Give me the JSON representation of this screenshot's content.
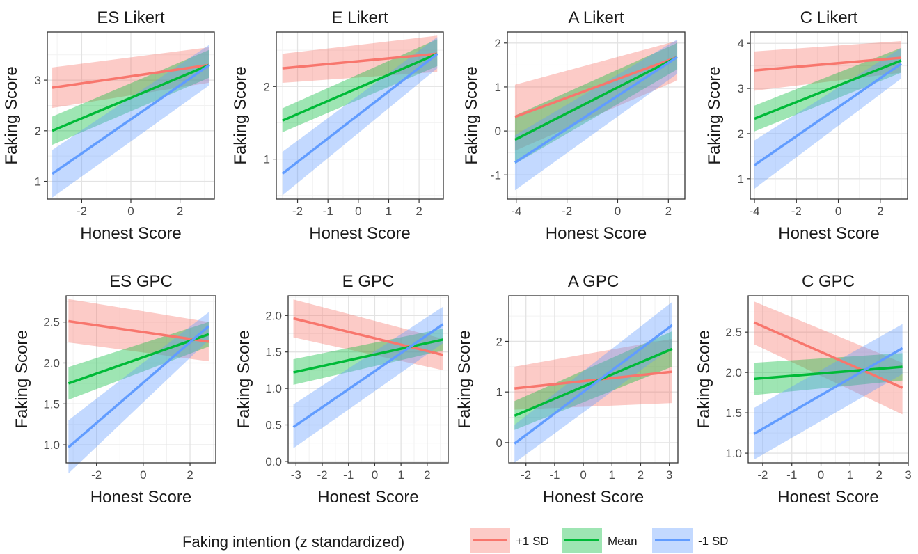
{
  "legend": {
    "title": "Faking intention (z standardized)",
    "position": "bottom",
    "entries": [
      {
        "label": "+1 SD",
        "color": "#F8766D"
      },
      {
        "label": "Mean",
        "color": "#00BA38"
      },
      {
        "label": "-1 SD",
        "color": "#619CFF"
      }
    ]
  },
  "chart_data": [
    {
      "type": "line",
      "title": "ES Likert",
      "xlabel": "Honest Score",
      "ylabel": "Faking Score",
      "xlim": [
        -3.4,
        3.4
      ],
      "ylim": [
        0.65,
        3.95
      ],
      "xticks": [
        -2,
        0,
        2
      ],
      "yticks": [
        1,
        2,
        3
      ],
      "grid": true,
      "series": [
        {
          "name": "+1 SD",
          "x": [
            -3.2,
            3.2
          ],
          "y": [
            2.85,
            3.3
          ],
          "lower": [
            2.45,
            2.95
          ],
          "upper": [
            3.25,
            3.65
          ]
        },
        {
          "name": "Mean",
          "x": [
            -3.2,
            3.2
          ],
          "y": [
            2.0,
            3.3
          ],
          "lower": [
            1.72,
            3.05
          ],
          "upper": [
            2.28,
            3.6
          ]
        },
        {
          "name": "-1 SD",
          "x": [
            -3.2,
            3.2
          ],
          "y": [
            1.15,
            3.3
          ],
          "lower": [
            0.68,
            2.9
          ],
          "upper": [
            1.62,
            3.7
          ]
        }
      ]
    },
    {
      "type": "line",
      "title": "E Likert",
      "xlabel": "Honest Score",
      "ylabel": "Faking Score",
      "xlim": [
        -2.7,
        2.8
      ],
      "ylim": [
        0.45,
        2.75
      ],
      "xticks": [
        -2,
        -1,
        0,
        1,
        2
      ],
      "yticks": [
        1,
        2
      ],
      "grid": true,
      "series": [
        {
          "name": "+1 SD",
          "x": [
            -2.5,
            2.6
          ],
          "y": [
            2.25,
            2.45
          ],
          "lower": [
            2.05,
            2.2
          ],
          "upper": [
            2.45,
            2.7
          ]
        },
        {
          "name": "Mean",
          "x": [
            -2.5,
            2.6
          ],
          "y": [
            1.53,
            2.45
          ],
          "lower": [
            1.37,
            2.28
          ],
          "upper": [
            1.7,
            2.65
          ]
        },
        {
          "name": "-1 SD",
          "x": [
            -2.5,
            2.6
          ],
          "y": [
            0.8,
            2.45
          ],
          "lower": [
            0.5,
            2.25
          ],
          "upper": [
            1.1,
            2.68
          ]
        }
      ]
    },
    {
      "type": "line",
      "title": "A Likert",
      "xlabel": "Honest Score",
      "ylabel": "Faking Score",
      "xlim": [
        -4.35,
        2.65
      ],
      "ylim": [
        -1.55,
        2.25
      ],
      "xticks": [
        -4,
        -2,
        0,
        2
      ],
      "yticks": [
        -1,
        0,
        1,
        2
      ],
      "grid": true,
      "series": [
        {
          "name": "+1 SD",
          "x": [
            -4.05,
            2.35
          ],
          "y": [
            0.32,
            1.68
          ],
          "lower": [
            -0.45,
            1.15
          ],
          "upper": [
            1.05,
            2.05
          ]
        },
        {
          "name": "Mean",
          "x": [
            -4.05,
            2.35
          ],
          "y": [
            -0.2,
            1.68
          ],
          "lower": [
            -0.75,
            1.4
          ],
          "upper": [
            0.35,
            2.0
          ]
        },
        {
          "name": "-1 SD",
          "x": [
            -4.05,
            2.35
          ],
          "y": [
            -0.72,
            1.68
          ],
          "lower": [
            -1.35,
            1.3
          ],
          "upper": [
            -0.1,
            2.08
          ]
        }
      ]
    },
    {
      "type": "line",
      "title": "C Likert",
      "xlabel": "Honest Score",
      "ylabel": "Faking Score",
      "xlim": [
        -4.2,
        3.3
      ],
      "ylim": [
        0.55,
        4.25
      ],
      "xticks": [
        -4,
        -2,
        0,
        2
      ],
      "yticks": [
        1,
        2,
        3,
        4
      ],
      "grid": true,
      "series": [
        {
          "name": "+1 SD",
          "x": [
            -4.0,
            3.0
          ],
          "y": [
            3.4,
            3.68
          ],
          "lower": [
            2.95,
            3.35
          ],
          "upper": [
            3.82,
            4.05
          ]
        },
        {
          "name": "Mean",
          "x": [
            -4.0,
            3.0
          ],
          "y": [
            2.33,
            3.62
          ],
          "lower": [
            2.05,
            3.35
          ],
          "upper": [
            2.62,
            3.9
          ]
        },
        {
          "name": "-1 SD",
          "x": [
            -4.0,
            3.0
          ],
          "y": [
            1.3,
            3.55
          ],
          "lower": [
            0.78,
            3.22
          ],
          "upper": [
            1.85,
            3.9
          ]
        }
      ]
    },
    {
      "type": "line",
      "title": "ES GPC",
      "xlabel": "Honest Score",
      "ylabel": "Faking Score",
      "xlim": [
        -3.3,
        3.1
      ],
      "ylim": [
        0.78,
        2.82
      ],
      "xticks": [
        -2,
        0,
        2
      ],
      "yticks": [
        1.0,
        1.5,
        2.0,
        2.5
      ],
      "ytick_labels": [
        "1.0",
        "1.5",
        "2.0",
        "2.5"
      ],
      "grid": true,
      "series": [
        {
          "name": "+1 SD",
          "x": [
            -3.2,
            2.8
          ],
          "y": [
            2.51,
            2.26
          ],
          "lower": [
            2.25,
            2.02
          ],
          "upper": [
            2.78,
            2.5
          ]
        },
        {
          "name": "Mean",
          "x": [
            -3.2,
            2.8
          ],
          "y": [
            1.75,
            2.35
          ],
          "lower": [
            1.55,
            2.2
          ],
          "upper": [
            1.95,
            2.5
          ]
        },
        {
          "name": "-1 SD",
          "x": [
            -3.2,
            2.8
          ],
          "y": [
            0.97,
            2.45
          ],
          "lower": [
            0.65,
            2.28
          ],
          "upper": [
            1.3,
            2.62
          ]
        }
      ]
    },
    {
      "type": "line",
      "title": "E GPC",
      "xlabel": "Honest Score",
      "ylabel": "Faking Score",
      "xlim": [
        -3.3,
        2.8
      ],
      "ylim": [
        -0.02,
        2.27
      ],
      "xticks": [
        -3,
        -2,
        -1,
        0,
        1,
        2
      ],
      "yticks": [
        0.0,
        0.5,
        1.0,
        1.5,
        2.0
      ],
      "ytick_labels": [
        "0.0",
        "0.5",
        "1.0",
        "1.5",
        "2.0"
      ],
      "grid": true,
      "series": [
        {
          "name": "+1 SD",
          "x": [
            -3.1,
            2.6
          ],
          "y": [
            1.96,
            1.46
          ],
          "lower": [
            1.7,
            1.25
          ],
          "upper": [
            2.22,
            1.68
          ]
        },
        {
          "name": "Mean",
          "x": [
            -3.1,
            2.6
          ],
          "y": [
            1.22,
            1.67
          ],
          "lower": [
            1.05,
            1.52
          ],
          "upper": [
            1.4,
            1.82
          ]
        },
        {
          "name": "-1 SD",
          "x": [
            -3.1,
            2.6
          ],
          "y": [
            0.47,
            1.88
          ],
          "lower": [
            0.18,
            1.62
          ],
          "upper": [
            0.78,
            2.12
          ]
        }
      ]
    },
    {
      "type": "line",
      "title": "A GPC",
      "xlabel": "Honest Score",
      "ylabel": "Faking Score",
      "xlim": [
        -2.6,
        3.3
      ],
      "ylim": [
        -0.4,
        2.9
      ],
      "xticks": [
        -2,
        -1,
        0,
        1,
        2,
        3
      ],
      "yticks": [
        0,
        1,
        2
      ],
      "grid": true,
      "series": [
        {
          "name": "+1 SD",
          "x": [
            -2.4,
            3.1
          ],
          "y": [
            1.07,
            1.4
          ],
          "lower": [
            0.65,
            0.78
          ],
          "upper": [
            1.5,
            2.05
          ]
        },
        {
          "name": "Mean",
          "x": [
            -2.4,
            3.1
          ],
          "y": [
            0.53,
            1.85
          ],
          "lower": [
            0.25,
            1.5
          ],
          "upper": [
            0.82,
            2.2
          ]
        },
        {
          "name": "-1 SD",
          "x": [
            -2.4,
            3.1
          ],
          "y": [
            -0.02,
            2.32
          ],
          "lower": [
            -0.4,
            1.88
          ],
          "upper": [
            0.35,
            2.78
          ]
        }
      ]
    },
    {
      "type": "line",
      "title": "C GPC",
      "xlabel": "Honest Score",
      "ylabel": "Faking Score",
      "xlim": [
        -2.5,
        3.0
      ],
      "ylim": [
        0.88,
        2.95
      ],
      "xticks": [
        -2,
        -1,
        0,
        1,
        2,
        3
      ],
      "yticks": [
        1.0,
        1.5,
        2.0,
        2.5
      ],
      "ytick_labels": [
        "1.0",
        "1.5",
        "2.0",
        "2.5"
      ],
      "grid": true,
      "series": [
        {
          "name": "+1 SD",
          "x": [
            -2.3,
            2.8
          ],
          "y": [
            2.62,
            1.81
          ],
          "lower": [
            2.35,
            1.48
          ],
          "upper": [
            2.88,
            2.12
          ]
        },
        {
          "name": "Mean",
          "x": [
            -2.3,
            2.8
          ],
          "y": [
            1.92,
            2.07
          ],
          "lower": [
            1.72,
            1.9
          ],
          "upper": [
            2.12,
            2.24
          ]
        },
        {
          "name": "-1 SD",
          "x": [
            -2.3,
            2.8
          ],
          "y": [
            1.24,
            2.3
          ],
          "lower": [
            0.92,
            1.98
          ],
          "upper": [
            1.56,
            2.6
          ]
        }
      ]
    }
  ]
}
